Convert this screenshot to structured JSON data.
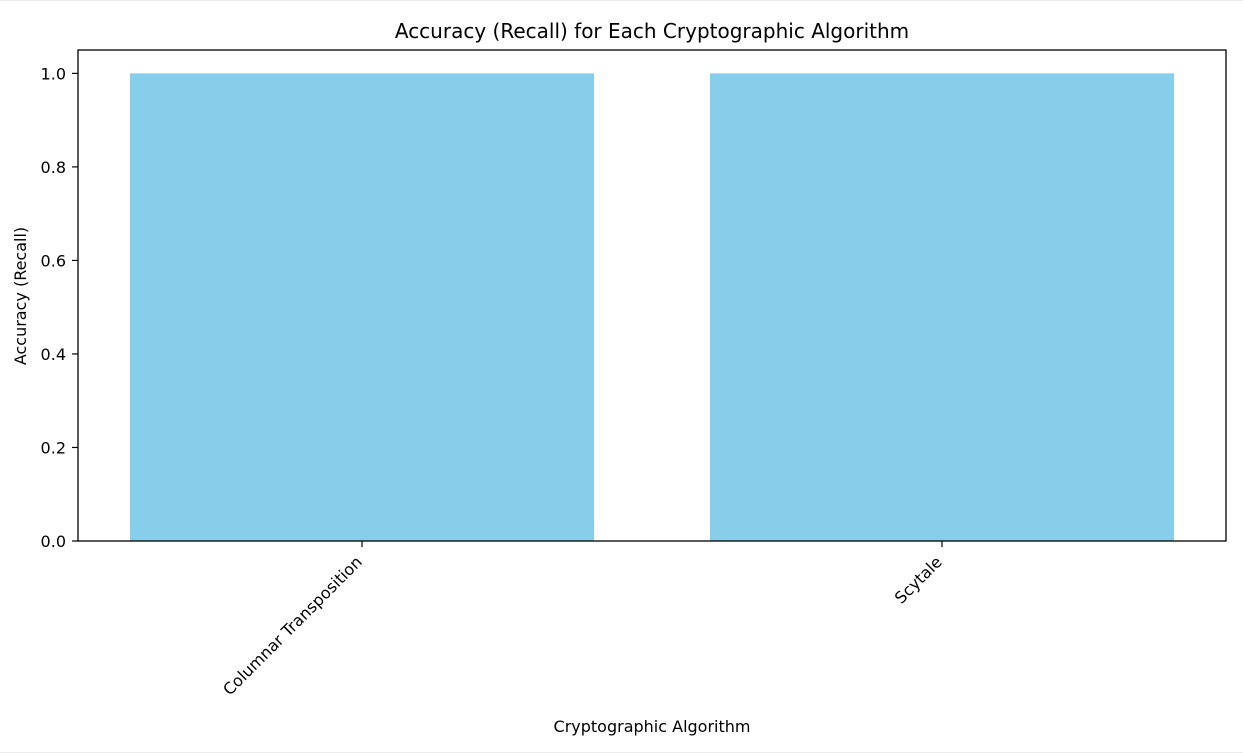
{
  "chart_data": {
    "type": "bar",
    "title": "Accuracy (Recall) for Each Cryptographic Algorithm",
    "xlabel": "Cryptographic Algorithm",
    "ylabel": "Accuracy (Recall)",
    "categories": [
      "Columnar Transposition",
      "Scytale"
    ],
    "values": [
      1.0,
      1.0
    ],
    "ylim": [
      0,
      1.05
    ],
    "yticks": [
      "0.0",
      "0.2",
      "0.4",
      "0.6",
      "0.8",
      "1.0"
    ],
    "bar_color": "#87ceeb",
    "xtick_rotation": 45,
    "grid": false,
    "legend": "none"
  }
}
